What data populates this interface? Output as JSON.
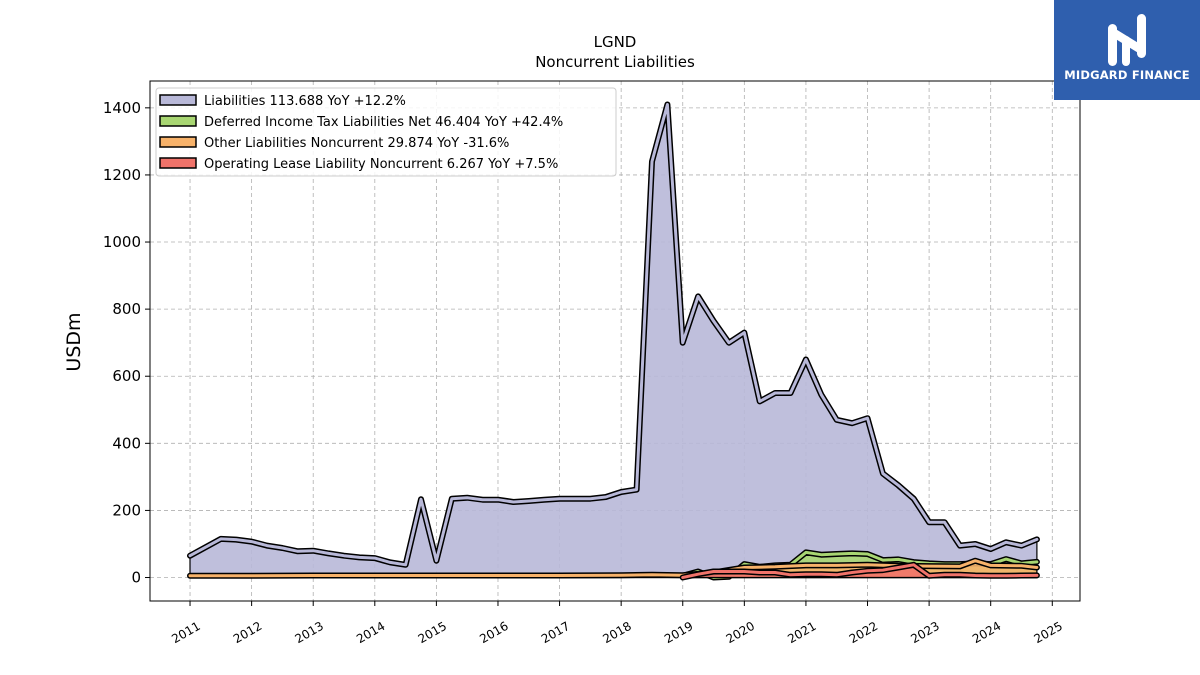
{
  "chart_data": {
    "type": "area",
    "title": "LGND",
    "subtitle": "Noncurrent  Liabilities",
    "xlabel": "",
    "ylabel": "USDm",
    "ylim": [
      -70,
      1480
    ],
    "xlim": [
      2010.35,
      2025.45
    ],
    "y_ticks": [
      0,
      200,
      400,
      600,
      800,
      1000,
      1200,
      1400
    ],
    "x_ticks": [
      2011,
      2012,
      2013,
      2014,
      2015,
      2016,
      2017,
      2018,
      2019,
      2020,
      2021,
      2022,
      2023,
      2024,
      2025
    ],
    "grid": true,
    "legend_position": "top-left",
    "series": [
      {
        "name": "Liabilities  113.688 YoY +12.2%",
        "color": "#b8b8d8",
        "x": [
          2011.0,
          2011.5,
          2011.75,
          2012.0,
          2012.25,
          2012.5,
          2012.75,
          2013.0,
          2013.25,
          2013.5,
          2013.75,
          2014.0,
          2014.25,
          2014.5,
          2014.75,
          2015.0,
          2015.25,
          2015.5,
          2015.75,
          2016.0,
          2016.25,
          2016.5,
          2016.75,
          2017.0,
          2017.25,
          2017.5,
          2017.75,
          2018.0,
          2018.25,
          2018.5,
          2018.75,
          2019.0,
          2019.25,
          2019.5,
          2019.75,
          2020.0,
          2020.25,
          2020.5,
          2020.75,
          2021.0,
          2021.25,
          2021.5,
          2021.75,
          2022.0,
          2022.25,
          2022.5,
          2022.75,
          2023.0,
          2023.25,
          2023.5,
          2023.75,
          2024.0,
          2024.25,
          2024.5,
          2024.75
        ],
        "y": [
          65,
          115,
          113,
          107,
          95,
          88,
          78,
          80,
          72,
          65,
          60,
          58,
          45,
          38,
          233,
          50,
          235,
          238,
          232,
          232,
          225,
          228,
          232,
          235,
          235,
          235,
          240,
          255,
          262,
          1240,
          1410,
          700,
          838,
          765,
          700,
          730,
          525,
          550,
          550,
          650,
          545,
          470,
          460,
          475,
          310,
          275,
          235,
          165,
          165,
          95,
          100,
          85,
          105,
          95,
          113.7
        ]
      },
      {
        "name": "Deferred Income Tax Liabilities Net  46.404 YoY +42.4%",
        "color": "#a8d672",
        "x": [
          2019.0,
          2019.25,
          2019.5,
          2019.75,
          2020.0,
          2020.25,
          2020.5,
          2020.75,
          2021.0,
          2021.25,
          2021.5,
          2021.75,
          2022.0,
          2022.25,
          2022.5,
          2022.75,
          2023.0,
          2023.25,
          2023.5,
          2023.75,
          2024.0,
          2024.25,
          2024.5,
          2024.75
        ],
        "y": [
          5,
          18,
          0,
          2,
          40,
          32,
          36,
          38,
          75,
          68,
          70,
          72,
          70,
          52,
          54,
          46,
          42,
          40,
          40,
          42,
          40,
          55,
          42,
          46.4
        ]
      },
      {
        "name": "Other Liabilities Noncurrent  29.874 YoY -31.6%",
        "color": "#f7b26a",
        "x": [
          2011.0,
          2012.0,
          2013.0,
          2014.0,
          2015.0,
          2016.0,
          2017.0,
          2018.0,
          2018.5,
          2019.0,
          2019.5,
          2020.0,
          2020.5,
          2021.0,
          2021.5,
          2022.0,
          2022.5,
          2023.0,
          2023.5,
          2023.75,
          2024.0,
          2024.5,
          2024.75
        ],
        "y": [
          5,
          5,
          6,
          6,
          6,
          6,
          6,
          7,
          8,
          7,
          15,
          30,
          32,
          36,
          36,
          38,
          35,
          34,
          33,
          50,
          36,
          35,
          29.9
        ]
      },
      {
        "name": "Operating Lease Liability Noncurrent  6.267 YoY +7.5%",
        "color": "#f0736a",
        "x": [
          2019.0,
          2019.25,
          2019.5,
          2019.75,
          2020.0,
          2020.25,
          2020.5,
          2020.75,
          2021.0,
          2021.25,
          2021.5,
          2021.75,
          2022.0,
          2022.25,
          2022.5,
          2022.75,
          2023.0,
          2023.25,
          2023.5,
          2023.75,
          2024.0,
          2024.25,
          2024.5,
          2024.75
        ],
        "y": [
          0,
          10,
          18,
          18,
          18,
          15,
          15,
          8,
          10,
          10,
          8,
          15,
          20,
          22,
          30,
          38,
          5,
          8,
          8,
          6,
          5,
          5,
          6,
          6.3
        ]
      }
    ]
  },
  "logo": {
    "text": "MIDGARD FINANCE"
  }
}
